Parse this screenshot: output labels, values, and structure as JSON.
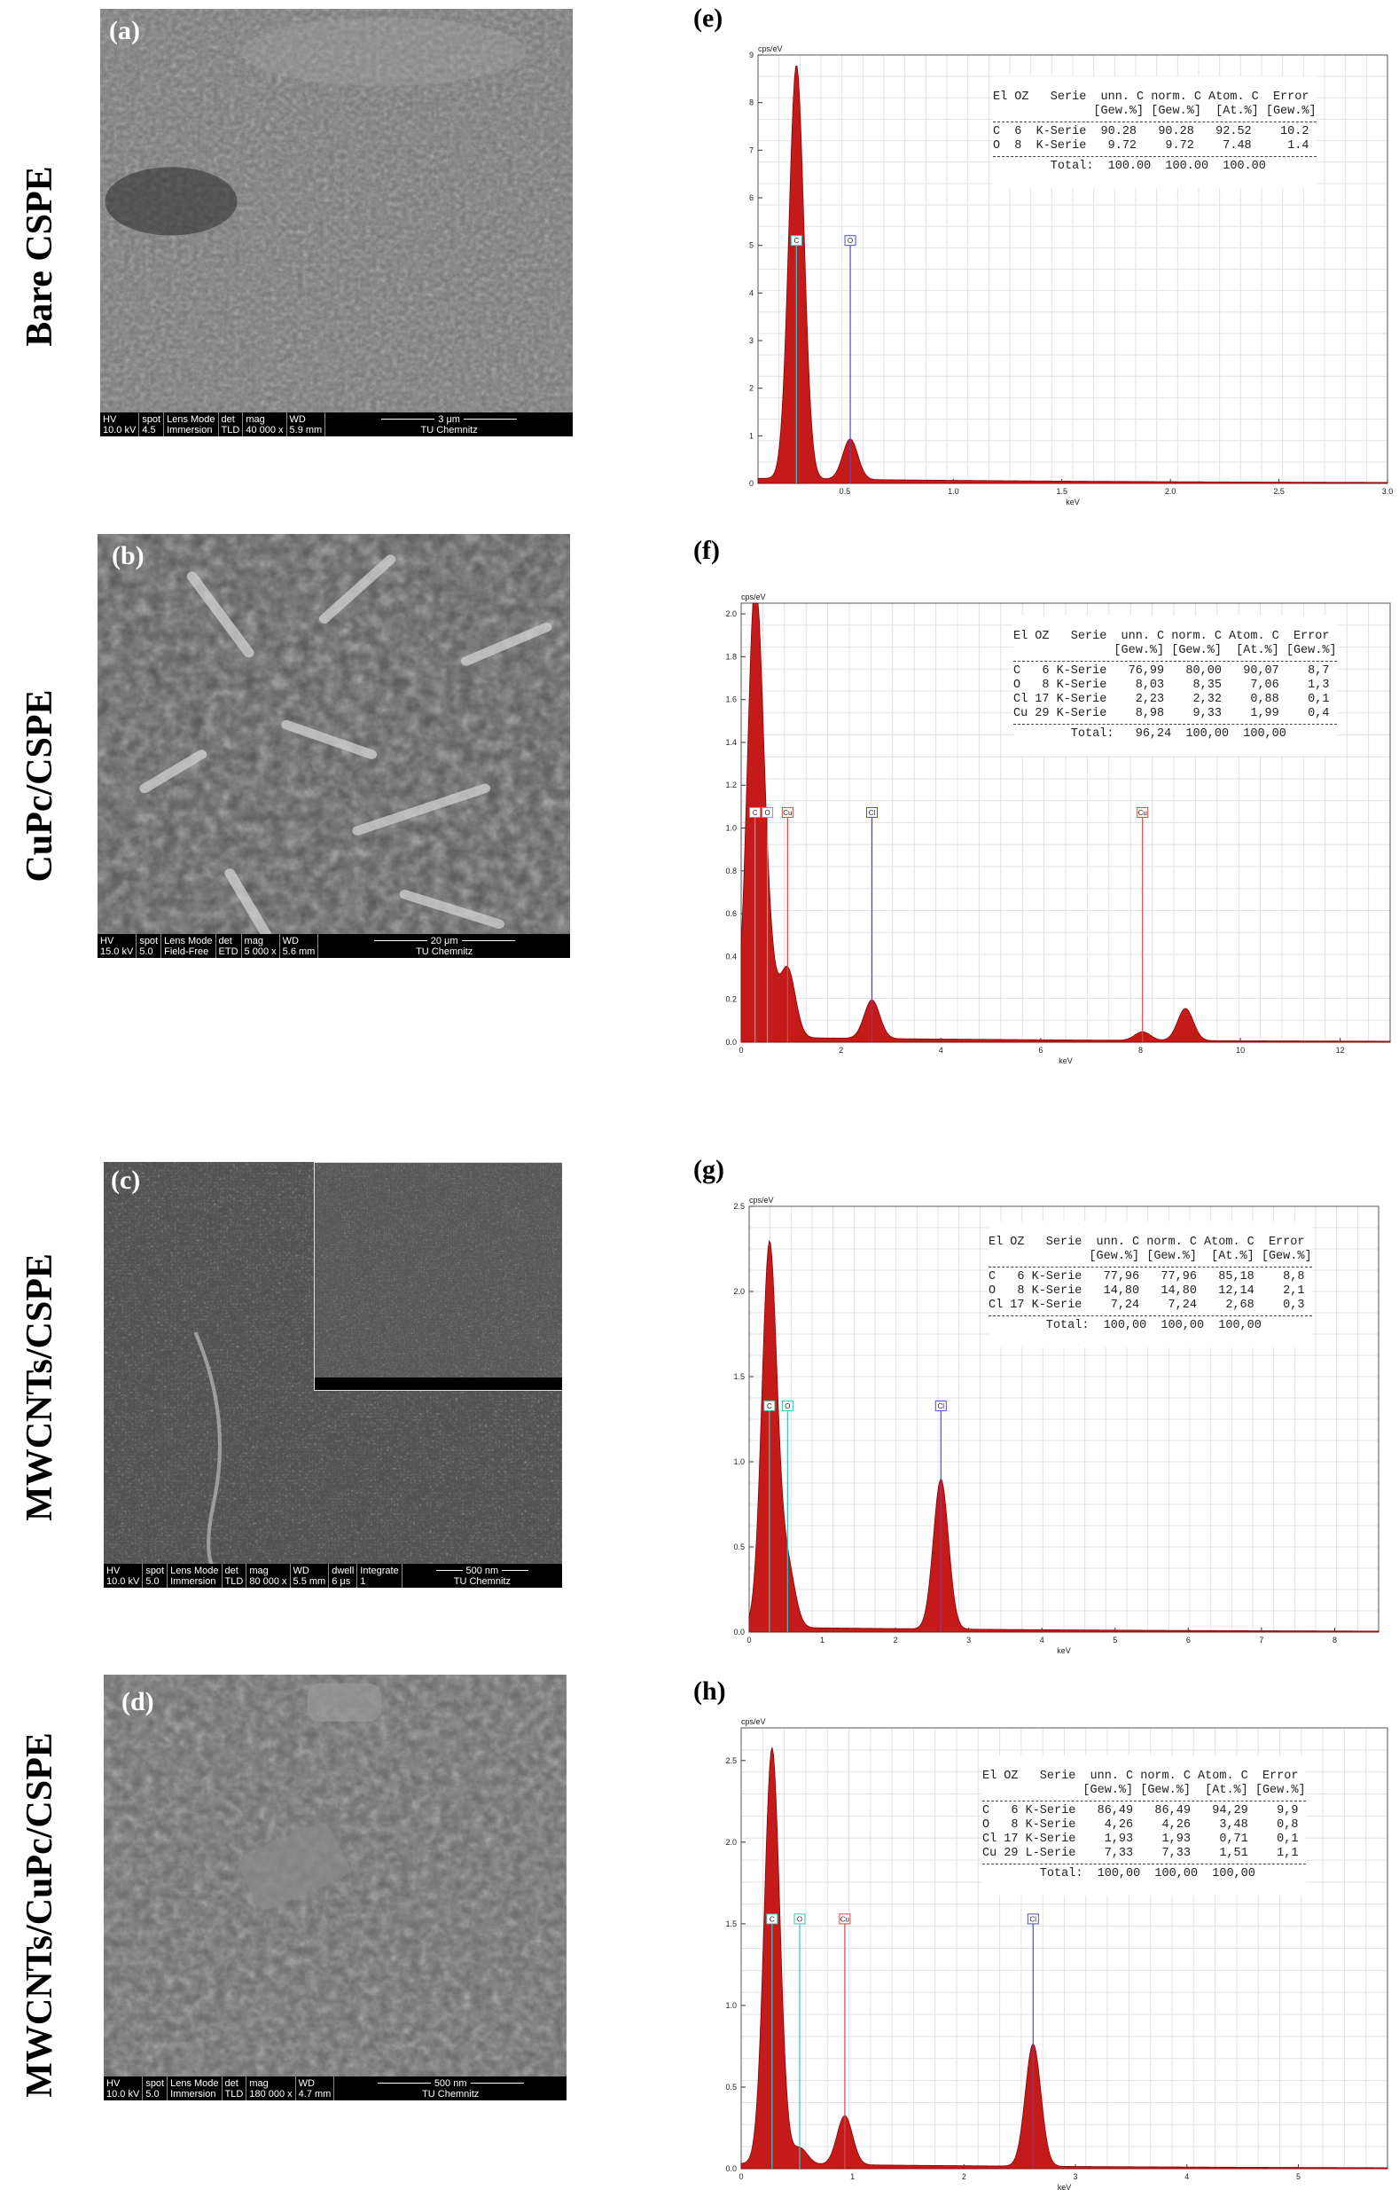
{
  "row_labels": [
    "Bare CSPE",
    "CuPc/CSPE",
    "MWCNTs/CSPE",
    "MWCNTs/CuPc/CSPE"
  ],
  "sem_panels": [
    {
      "letter": "(a)",
      "hv": [
        "HV",
        "10.0 kV"
      ],
      "spot": [
        "spot",
        "4.5"
      ],
      "lens": [
        "Lens Mode",
        "Immersion"
      ],
      "det": [
        "det",
        "TLD"
      ],
      "mag": [
        "mag",
        "40 000 x"
      ],
      "wd": [
        "WD",
        "5.9 mm"
      ],
      "scale": "3 μm",
      "lab": "TU Chemnitz"
    },
    {
      "letter": "(b)",
      "hv": [
        "HV",
        "15.0 kV"
      ],
      "spot": [
        "spot",
        "5.0"
      ],
      "lens": [
        "Lens Mode",
        "Field-Free"
      ],
      "det": [
        "det",
        "ETD"
      ],
      "mag": [
        "mag",
        "5 000 x"
      ],
      "wd": [
        "WD",
        "5.6 mm"
      ],
      "scale": "20 μm",
      "lab": "TU Chemnitz"
    },
    {
      "letter": "(c)",
      "hv": [
        "HV",
        "10.0 kV"
      ],
      "spot": [
        "spot",
        "5.0"
      ],
      "lens": [
        "Lens Mode",
        "Immersion"
      ],
      "det": [
        "det",
        "TLD"
      ],
      "mag": [
        "mag",
        "80 000 x"
      ],
      "wd": [
        "WD",
        "5.5 mm"
      ],
      "dwell": [
        "dwell",
        "6 μs"
      ],
      "integrate": [
        "Integrate",
        "1"
      ],
      "scale": "500 nm",
      "lab": "TU Chemnitz"
    },
    {
      "letter": "(d)",
      "hv": [
        "HV",
        "10.0 kV"
      ],
      "spot": [
        "spot",
        "5.0"
      ],
      "lens": [
        "Lens Mode",
        "Immersion"
      ],
      "det": [
        "det",
        "TLD"
      ],
      "mag": [
        "mag",
        "180 000 x"
      ],
      "wd": [
        "WD",
        "4.7 mm"
      ],
      "scale": "500 nm",
      "lab": "TU Chemnitz"
    }
  ],
  "eds_panels": [
    {
      "letter": "(e)",
      "ylabel": "cps/eV",
      "xlabel": "keV",
      "table": {
        "header1": "El OZ   Serie  unn. C norm. C Atom. C  Error",
        "header2": "              [Gew.%] [Gew.%]  [At.%] [Gew.%]",
        "rows": [
          "C  6  K-Serie  90.28   90.28   92.52    10.2",
          "O  8  K-Serie   9.72    9.72    7.48     1.4"
        ],
        "total": "        Total:  100.00  100.00  100.00"
      }
    },
    {
      "letter": "(f)",
      "ylabel": "cps/eV",
      "xlabel": "keV",
      "table": {
        "header1": "El OZ   Serie  unn. C norm. C Atom. C  Error",
        "header2": "              [Gew.%] [Gew.%]  [At.%] [Gew.%]",
        "rows": [
          "C   6 K-Serie   76,99   80,00   90,07    8,7",
          "O   8 K-Serie    8,03    8,35    7,06    1,3",
          "Cl 17 K-Serie    2,23    2,32    0,88    0,1",
          "Cu 29 K-Serie    8,98    9,33    1,99    0,4"
        ],
        "total": "        Total:   96,24  100,00  100,00"
      }
    },
    {
      "letter": "(g)",
      "ylabel": "cps/eV",
      "xlabel": "keV",
      "table": {
        "header1": "El OZ   Serie  unn. C norm. C Atom. C  Error",
        "header2": "              [Gew.%] [Gew.%]  [At.%] [Gew.%]",
        "rows": [
          "C   6 K-Serie   77,96   77,96   85,18    8,8",
          "O   8 K-Serie   14,80   14,80   12,14    2,1",
          "Cl 17 K-Serie    7,24    7,24    2,68    0,3"
        ],
        "total": "        Total:  100,00  100,00  100,00"
      }
    },
    {
      "letter": "(h)",
      "ylabel": "cps/eV",
      "xlabel": "keV",
      "table": {
        "header1": "El OZ   Serie  unn. C norm. C Atom. C  Error",
        "header2": "              [Gew.%] [Gew.%]  [At.%] [Gew.%]",
        "rows": [
          "C   6 K-Serie   86,49   86,49   94,29    9,9",
          "O   8 K-Serie    4,26    4,26    3,48    0,8",
          "Cl 17 K-Serie    1,93    1,93    0,71    0,1",
          "Cu 29 L-Serie    7,33    7,33    1,51    1,1"
        ],
        "total": "        Total:  100,00  100,00  100,00"
      }
    }
  ],
  "chart_data": [
    {
      "type": "line",
      "panel": "(e)",
      "xlabel": "keV",
      "ylabel": "cps/eV",
      "xlim": [
        0.1,
        3.0
      ],
      "ylim": [
        0,
        9
      ],
      "xticks": [
        "0.5",
        "1.0",
        "1.5",
        "2.0",
        "2.5",
        "3.0"
      ],
      "yticks": [
        "0",
        "1",
        "2",
        "3",
        "4",
        "5",
        "6",
        "7",
        "8",
        "9"
      ],
      "peaks": [
        {
          "x": 0.277,
          "y": 8.7
        },
        {
          "x": 0.525,
          "y": 0.85
        }
      ],
      "markers": [
        {
          "label": "C",
          "x": 0.277,
          "y": 5.0,
          "color": "#35c5c5"
        },
        {
          "label": "O",
          "x": 0.525,
          "y": 5.0,
          "color": "#4a4ad8"
        }
      ]
    },
    {
      "type": "line",
      "panel": "(f)",
      "xlabel": "keV",
      "ylabel": "cps/eV",
      "xlim": [
        0,
        13
      ],
      "ylim": [
        0,
        2.05
      ],
      "xticks": [
        "0",
        "2",
        "4",
        "6",
        "8",
        "10",
        "12"
      ],
      "yticks": [
        "0.0",
        "0.2",
        "0.4",
        "0.6",
        "0.8",
        "1.0",
        "1.2",
        "1.4",
        "1.6",
        "1.8",
        "2.0"
      ],
      "peaks": [
        {
          "x": 0.277,
          "y": 2.05
        },
        {
          "x": 0.525,
          "y": 0.32
        },
        {
          "x": 0.93,
          "y": 0.32
        },
        {
          "x": 2.62,
          "y": 0.18
        },
        {
          "x": 8.04,
          "y": 0.04
        },
        {
          "x": 8.9,
          "y": 0.15
        }
      ],
      "markers": [
        {
          "label": "C",
          "x": 0.277,
          "y": 1.05,
          "color": "#35c5c5"
        },
        {
          "label": "O",
          "x": 0.525,
          "y": 1.05,
          "color": "#35c5c5"
        },
        {
          "label": "Cu",
          "x": 0.93,
          "y": 1.05,
          "color": "#d94a4a"
        },
        {
          "label": "Cl",
          "x": 2.62,
          "y": 1.05,
          "color": "#4a4ad8"
        },
        {
          "label": "Cu",
          "x": 8.04,
          "y": 1.05,
          "color": "#d94a4a"
        }
      ]
    },
    {
      "type": "line",
      "panel": "(g)",
      "xlabel": "keV",
      "ylabel": "cps/eV",
      "xlim": [
        0,
        8.6
      ],
      "ylim": [
        0,
        2.5
      ],
      "xticks": [
        "0",
        "1",
        "2",
        "3",
        "4",
        "5",
        "6",
        "7",
        "8"
      ],
      "yticks": [
        "0.0",
        "0.5",
        "1.0",
        "1.5",
        "2.0",
        "2.5"
      ],
      "peaks": [
        {
          "x": 0.277,
          "y": 2.25
        },
        {
          "x": 0.525,
          "y": 0.35
        },
        {
          "x": 2.62,
          "y": 0.88
        }
      ],
      "markers": [
        {
          "label": "C",
          "x": 0.277,
          "y": 1.3,
          "color": "#35c5c5"
        },
        {
          "label": "O",
          "x": 0.525,
          "y": 1.3,
          "color": "#35c5c5"
        },
        {
          "label": "Cl",
          "x": 2.62,
          "y": 1.3,
          "color": "#4a4ad8"
        }
      ]
    },
    {
      "type": "line",
      "panel": "(h)",
      "xlabel": "keV",
      "ylabel": "cps/eV",
      "xlim": [
        0,
        5.8
      ],
      "ylim": [
        0,
        2.7
      ],
      "xticks": [
        "0",
        "1",
        "2",
        "3",
        "4",
        "5"
      ],
      "yticks": [
        "0.0",
        "0.5",
        "1.0",
        "1.5",
        "2.0",
        "2.5"
      ],
      "peaks": [
        {
          "x": 0.277,
          "y": 2.55
        },
        {
          "x": 0.525,
          "y": 0.1
        },
        {
          "x": 0.93,
          "y": 0.3
        },
        {
          "x": 2.62,
          "y": 0.75
        }
      ],
      "markers": [
        {
          "label": "C",
          "x": 0.277,
          "y": 1.5,
          "color": "#35c5c5"
        },
        {
          "label": "O",
          "x": 0.525,
          "y": 1.5,
          "color": "#35c5c5"
        },
        {
          "label": "Cu",
          "x": 0.93,
          "y": 1.5,
          "color": "#d94a4a"
        },
        {
          "label": "Cl",
          "x": 2.62,
          "y": 1.5,
          "color": "#4a4ad8"
        }
      ]
    }
  ]
}
